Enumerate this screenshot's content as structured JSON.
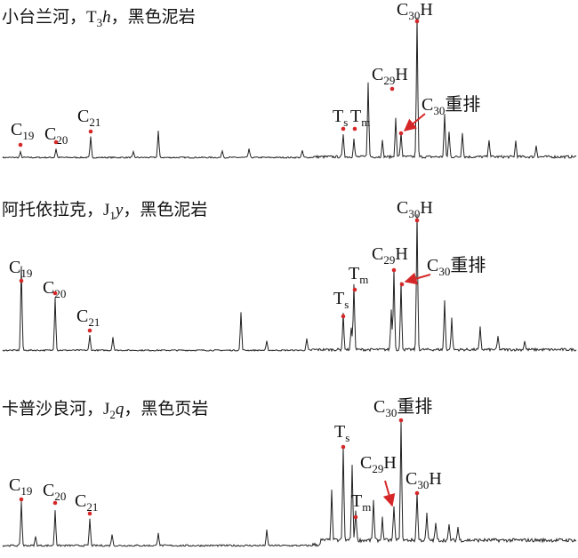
{
  "panels": [
    {
      "title": [
        {
          "text": "小台兰河，T"
        },
        {
          "text": "3",
          "sub": true
        },
        {
          "text": "h",
          "italic": true
        },
        {
          "text": "，黑色泥岩"
        }
      ],
      "peaks": [
        {
          "label": [
            {
              "text": "C"
            },
            {
              "text": "19",
              "sub": true
            }
          ]
        },
        {
          "label": [
            {
              "text": "C"
            },
            {
              "text": "20",
              "sub": true
            }
          ]
        },
        {
          "label": [
            {
              "text": "C"
            },
            {
              "text": "21",
              "sub": true
            }
          ]
        },
        {
          "label": [
            {
              "text": "T"
            },
            {
              "text": "s",
              "sub": true
            }
          ]
        },
        {
          "label": [
            {
              "text": "T"
            },
            {
              "text": "m",
              "sub": true
            }
          ]
        },
        {
          "label": [
            {
              "text": "C"
            },
            {
              "text": "29",
              "sub": true
            },
            {
              "text": "H"
            }
          ]
        },
        {
          "label": [
            {
              "text": "C"
            },
            {
              "text": "30",
              "sub": true
            },
            {
              "text": "重排"
            }
          ]
        },
        {
          "label": [
            {
              "text": "C"
            },
            {
              "text": "30",
              "sub": true
            },
            {
              "text": "H"
            }
          ]
        }
      ]
    },
    {
      "title": [
        {
          "text": "阿托依拉克，J"
        },
        {
          "text": "1",
          "sub": true
        },
        {
          "text": "y",
          "italic": true
        },
        {
          "text": "，黑色泥岩"
        }
      ],
      "peaks": [
        {
          "label": [
            {
              "text": "C"
            },
            {
              "text": "19",
              "sub": true
            }
          ]
        },
        {
          "label": [
            {
              "text": "C"
            },
            {
              "text": "20",
              "sub": true
            }
          ]
        },
        {
          "label": [
            {
              "text": "C"
            },
            {
              "text": "21",
              "sub": true
            }
          ]
        },
        {
          "label": [
            {
              "text": "T"
            },
            {
              "text": "s",
              "sub": true
            }
          ]
        },
        {
          "label": [
            {
              "text": "T"
            },
            {
              "text": "m",
              "sub": true
            }
          ]
        },
        {
          "label": [
            {
              "text": "C"
            },
            {
              "text": "29",
              "sub": true
            },
            {
              "text": "H"
            }
          ]
        },
        {
          "label": [
            {
              "text": "C"
            },
            {
              "text": "30",
              "sub": true
            },
            {
              "text": "重排"
            }
          ]
        },
        {
          "label": [
            {
              "text": "C"
            },
            {
              "text": "30",
              "sub": true
            },
            {
              "text": "H"
            }
          ]
        }
      ]
    },
    {
      "title": [
        {
          "text": "卡普沙良河，J"
        },
        {
          "text": "2",
          "sub": true
        },
        {
          "text": "q",
          "italic": true
        },
        {
          "text": "，黑色页岩"
        }
      ],
      "peaks": [
        {
          "label": [
            {
              "text": "C"
            },
            {
              "text": "19",
              "sub": true
            }
          ]
        },
        {
          "label": [
            {
              "text": "C"
            },
            {
              "text": "20",
              "sub": true
            }
          ]
        },
        {
          "label": [
            {
              "text": "C"
            },
            {
              "text": "21",
              "sub": true
            }
          ]
        },
        {
          "label": [
            {
              "text": "T"
            },
            {
              "text": "s",
              "sub": true
            }
          ]
        },
        {
          "label": [
            {
              "text": "T"
            },
            {
              "text": "m",
              "sub": true
            }
          ]
        },
        {
          "label": [
            {
              "text": "C"
            },
            {
              "text": "29",
              "sub": true
            },
            {
              "text": "H"
            }
          ]
        },
        {
          "label": [
            {
              "text": "C"
            },
            {
              "text": "30",
              "sub": true
            },
            {
              "text": "重排"
            }
          ]
        },
        {
          "label": [
            {
              "text": "C"
            },
            {
              "text": "30",
              "sub": true
            },
            {
              "text": "H"
            }
          ]
        }
      ]
    }
  ]
}
